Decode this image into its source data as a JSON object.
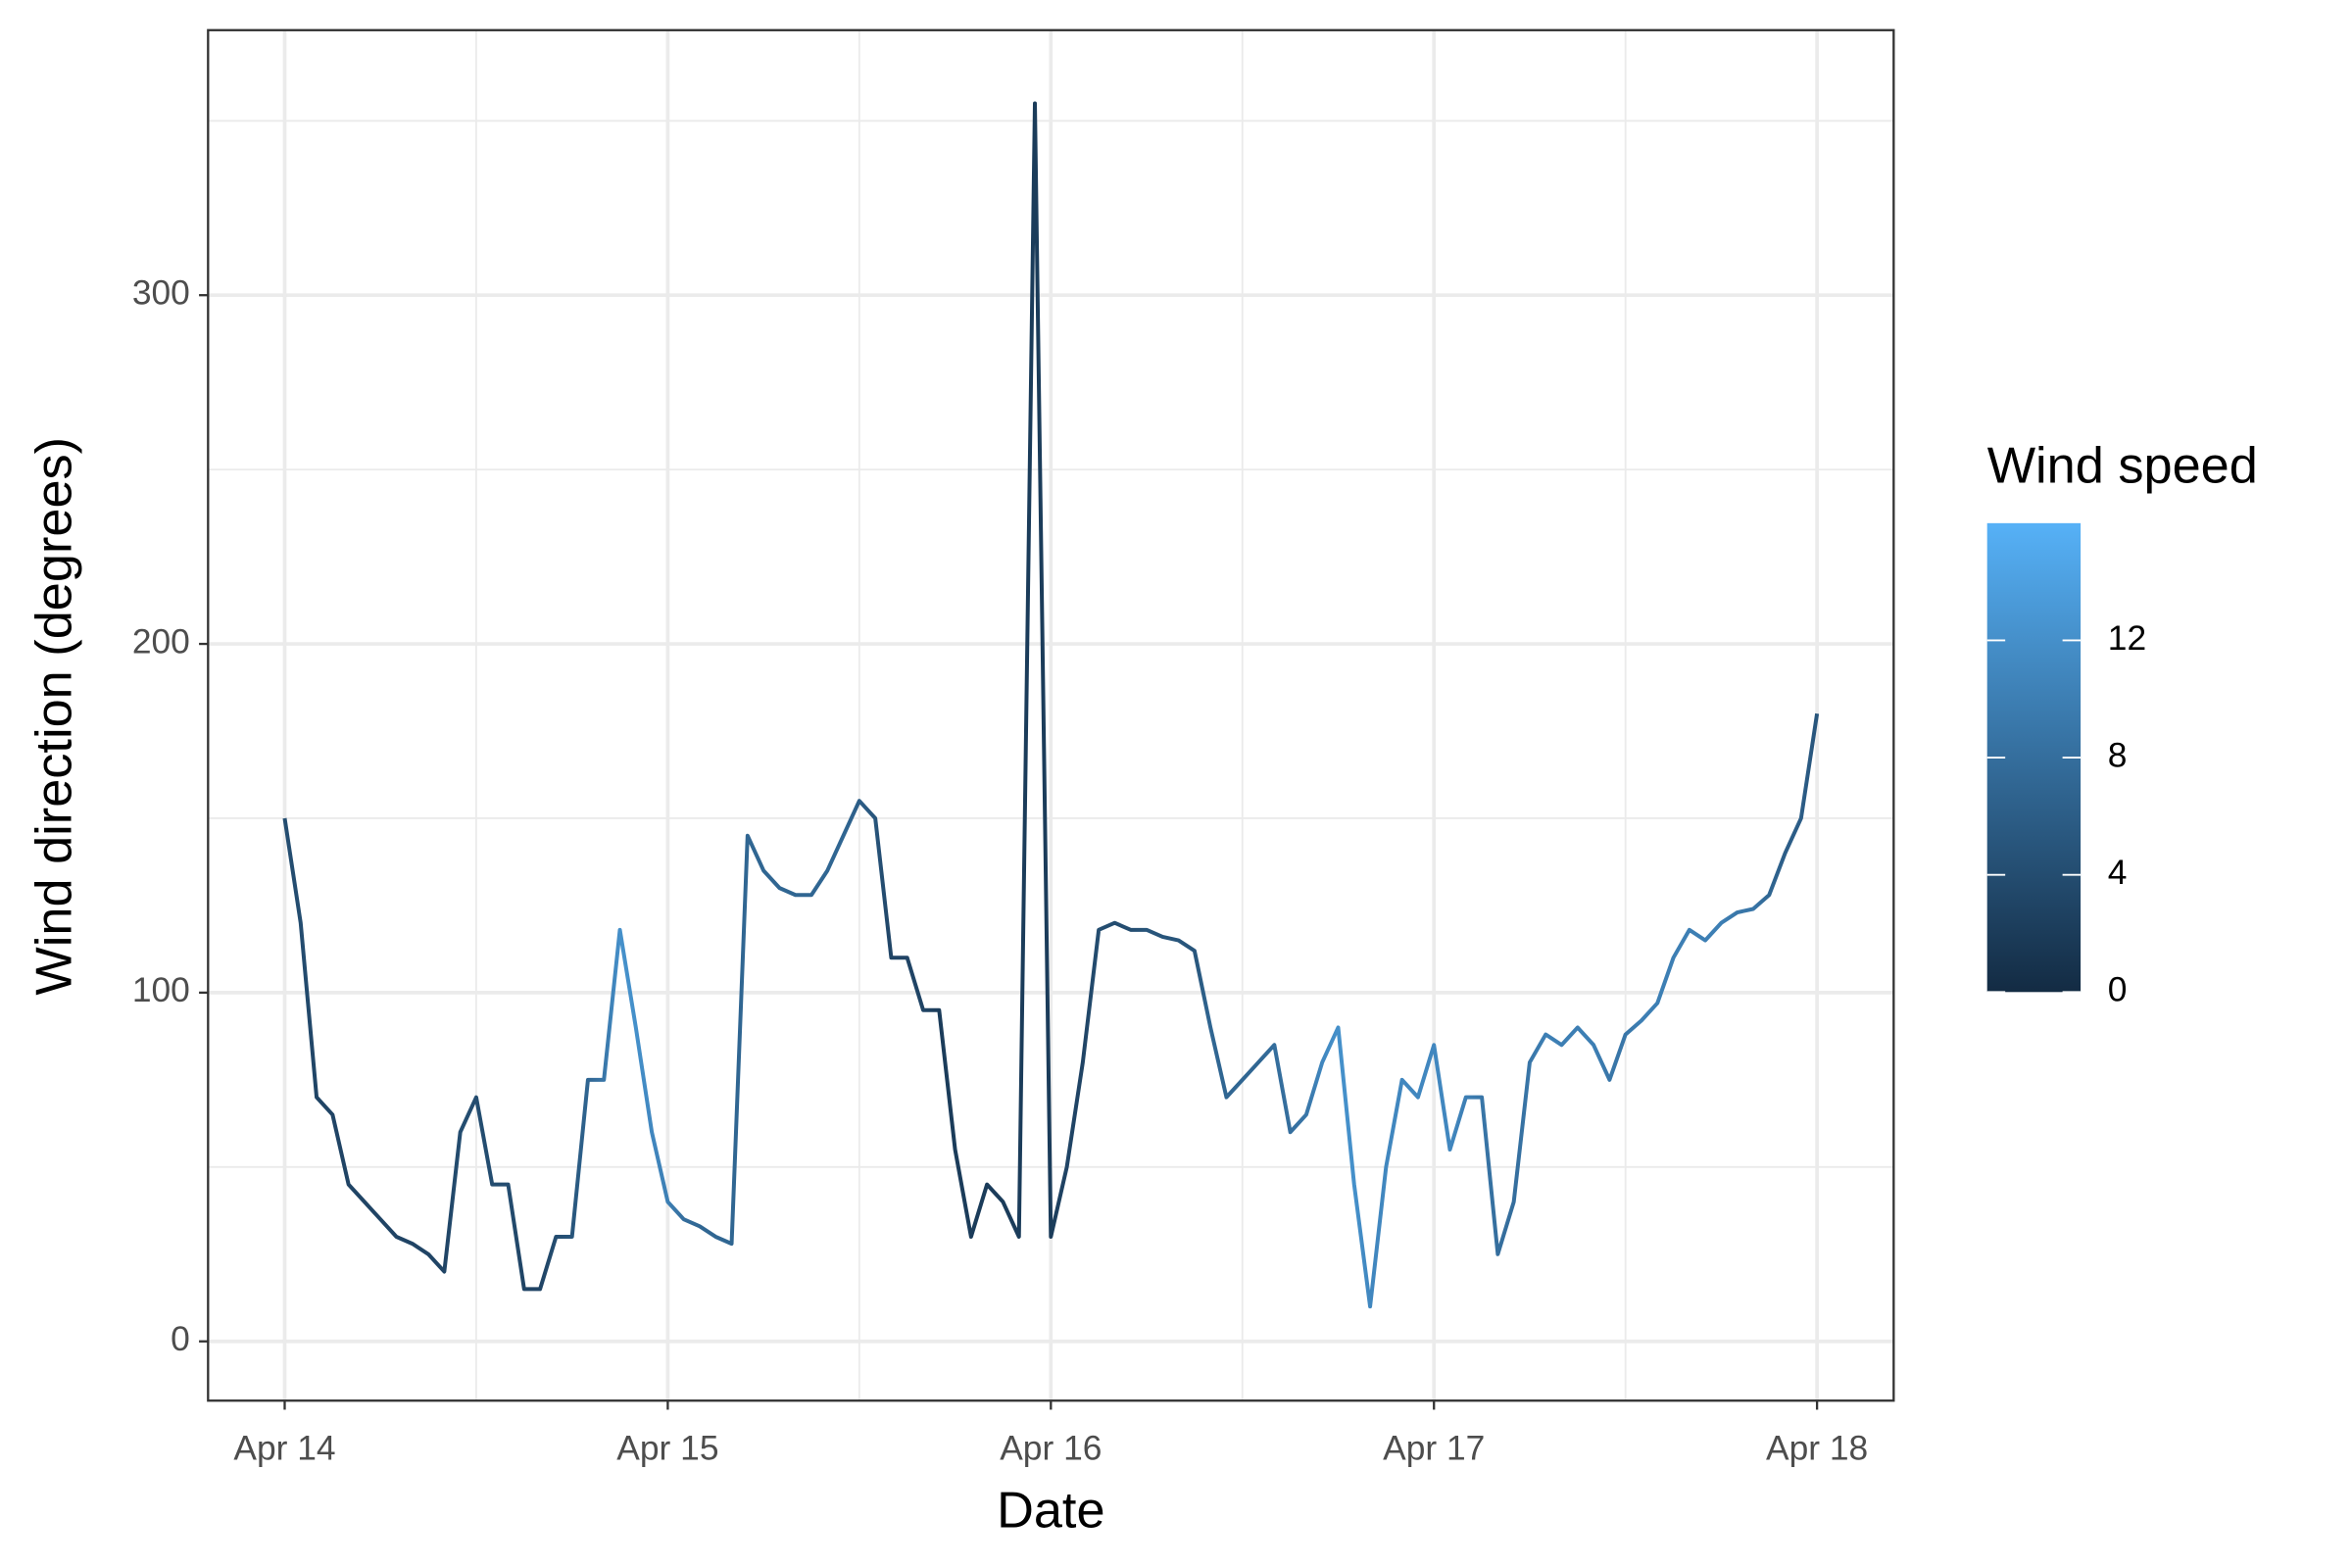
{
  "chart_data": {
    "type": "line",
    "x_label": "Date",
    "y_label": "Wind direction (degrees)",
    "x": [
      0,
      1,
      2,
      3,
      4,
      5,
      6,
      7,
      8,
      9,
      10,
      11,
      12,
      13,
      14,
      15,
      16,
      17,
      18,
      19,
      20,
      21,
      22,
      23,
      24,
      25,
      26,
      27,
      28,
      29,
      30,
      31,
      32,
      33,
      34,
      35,
      36,
      37,
      38,
      39,
      40,
      41,
      42,
      43,
      44,
      45,
      46,
      47,
      48,
      49,
      50,
      51,
      52,
      53,
      54,
      55,
      56,
      57,
      58,
      59,
      60,
      61,
      62,
      63,
      64,
      65,
      66,
      67,
      68,
      69,
      70,
      71,
      72,
      73,
      74,
      75,
      76,
      77,
      78,
      79,
      80,
      81,
      82,
      83,
      84,
      85,
      86,
      87,
      88,
      89,
      90,
      91,
      92,
      93,
      94,
      95,
      96
    ],
    "values": [
      150,
      120,
      70,
      65,
      45,
      40,
      35,
      30,
      28,
      25,
      20,
      60,
      70,
      45,
      45,
      15,
      15,
      30,
      30,
      75,
      75,
      118,
      90,
      60,
      40,
      35,
      33,
      30,
      28,
      145,
      135,
      130,
      128,
      128,
      135,
      145,
      155,
      150,
      110,
      110,
      95,
      95,
      55,
      30,
      45,
      40,
      30,
      355,
      30,
      50,
      80,
      118,
      120,
      118,
      118,
      116,
      115,
      112,
      90,
      70,
      75,
      80,
      85,
      60,
      65,
      80,
      90,
      45,
      10,
      50,
      75,
      70,
      85,
      55,
      70,
      70,
      25,
      40,
      80,
      88,
      85,
      90,
      85,
      75,
      88,
      92,
      97,
      110,
      118,
      115,
      120,
      123,
      124,
      128,
      140,
      150,
      180
    ],
    "speed": [
      4,
      4,
      3,
      3,
      3,
      3,
      3,
      3,
      3,
      3,
      3,
      4,
      4,
      4,
      4,
      3,
      3,
      4,
      5,
      7,
      9,
      12,
      12,
      11,
      10,
      8,
      7,
      7,
      7,
      7,
      7,
      7,
      7,
      7,
      7,
      7,
      6,
      5,
      3,
      3,
      3,
      2,
      2,
      2,
      2,
      2,
      2,
      2,
      2,
      3,
      3,
      4,
      4,
      4,
      5,
      5,
      5,
      5,
      7,
      7,
      7,
      7,
      8,
      8,
      9,
      11,
      12,
      12,
      11,
      11,
      11,
      11,
      11,
      11,
      10,
      9,
      8,
      8,
      9,
      10,
      10,
      10,
      10,
      9,
      9,
      10,
      10,
      10,
      10,
      10,
      10,
      9,
      9,
      7,
      6,
      6,
      5
    ],
    "xlim": [
      -4.8,
      100.8
    ],
    "xticks": [
      {
        "value": 0,
        "label": "Apr 14"
      },
      {
        "value": 24,
        "label": "Apr 15"
      },
      {
        "value": 48,
        "label": "Apr 16"
      },
      {
        "value": 72,
        "label": "Apr 17"
      },
      {
        "value": 96,
        "label": "Apr 18"
      }
    ],
    "ylim": [
      -17,
      376
    ],
    "yticks": [
      0,
      100,
      200,
      300
    ],
    "grid": true,
    "color_legend": {
      "title": "Wind speed",
      "lim": [
        0,
        16
      ],
      "ticks": [
        0,
        4,
        8,
        12
      ],
      "low": "#132B43",
      "high": "#56B1F7"
    }
  }
}
